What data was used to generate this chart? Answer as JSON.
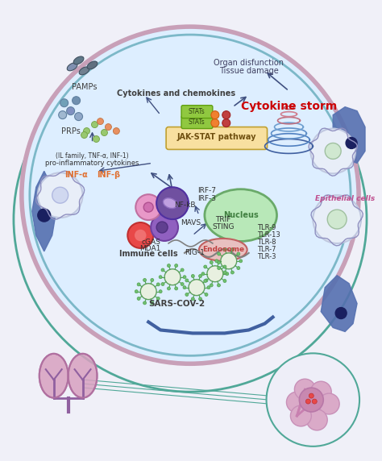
{
  "bg_color": "#f0f0f8",
  "cell_color": "#ddeeff",
  "cell_border_outer": "#c8a0b8",
  "cell_border_inner": "#7cb8c8",
  "nucleus_color": "#b8e8b8",
  "nucleus_border": "#6aaa6a",
  "endosome_color": "#e8c0c0",
  "endosome_border": "#c06060",
  "lung_color": "#e8c8d8",
  "lung_vessel_color": "#9060a0",
  "alveoli_color": "#e0b8d8",
  "teal_line": "#50a898",
  "pink_line": "#c870a0",
  "arrow_color": "#405080",
  "title_color": "#cc0000",
  "labels": {
    "sars": "SARS-COV-2",
    "immune": "Immune cells",
    "mda1": "MDA1",
    "cgas": "cGAS",
    "rig1": "RIG-1",
    "endosome": "Endosome",
    "tlr3": "TLR-3",
    "tlr7": "TLR-7",
    "tlr8": "TLR-8",
    "tlr13": "TLR-13",
    "tlr9": "TLR-9",
    "mavs": "MAVS",
    "sting": "STING",
    "trif": "TRIF",
    "nfkb": "NF-kB",
    "irf3": "IRF-3",
    "irf7": "IRF-7",
    "nucleus": "Nucleus",
    "inf_a": "INF-α",
    "inf_b": "INF-β",
    "pro_inf": "pro-inflammatory cytokines",
    "pro_inf2": "(IL family, TNF-α, INF-1)",
    "jak": "JAK-STAT pathway",
    "stats1": "STATs",
    "stats2": "STATs",
    "cytokines": "Cytokines and chemokines",
    "prps": "PRPs",
    "pamps": "PAMPs",
    "epithelial": "Epithelial cells",
    "cytokine_storm": "Cytokine storm",
    "tissue": "Tissue damage",
    "organ": "Organ disfunction"
  }
}
